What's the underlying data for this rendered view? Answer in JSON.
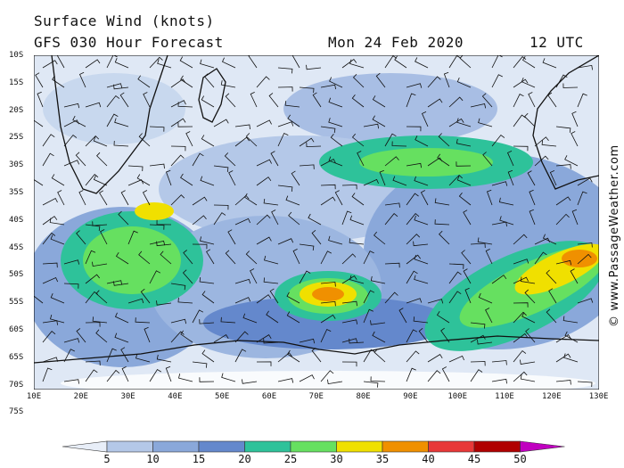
{
  "header": {
    "title": "Surface Wind (knots)",
    "model": "GFS 030 Hour Forecast",
    "date": "Mon 24 Feb 2020",
    "time": "12 UTC"
  },
  "credit": "© www.PassageWeather.com",
  "latitude_labels": [
    "10S",
    "15S",
    "20S",
    "25S",
    "30S",
    "35S",
    "40S",
    "45S",
    "50S",
    "55S",
    "60S",
    "65S",
    "70S",
    "75S"
  ],
  "longitude_labels": [
    "10E",
    "20E",
    "30E",
    "40E",
    "50E",
    "60E",
    "70E",
    "80E",
    "90E",
    "100E",
    "110E",
    "120E",
    "130E"
  ],
  "colorbar": {
    "labels": [
      "5",
      "10",
      "15",
      "20",
      "25",
      "30",
      "35",
      "40",
      "45",
      "50"
    ],
    "colors": [
      "#e8eef8",
      "#b4c8e8",
      "#8aa8da",
      "#6488cc",
      "#2ec29a",
      "#66e060",
      "#f0e000",
      "#f09000",
      "#e83838",
      "#b00000",
      "#c000c0"
    ]
  }
}
